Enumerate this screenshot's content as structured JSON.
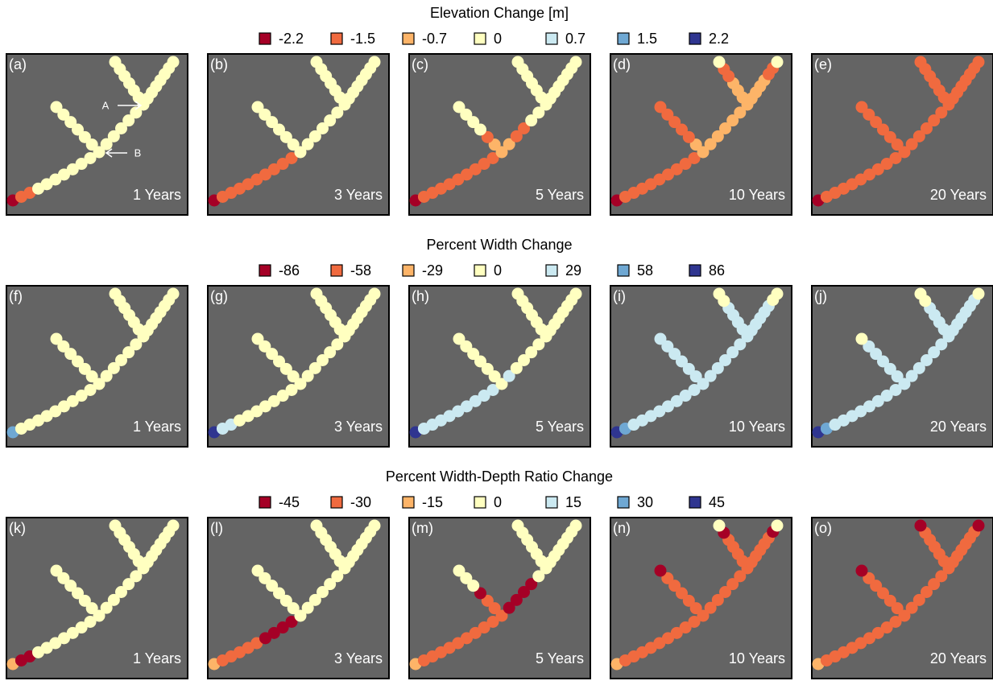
{
  "chart_data": [
    {
      "type": "dot-network",
      "title": "Elevation Change [m]",
      "legend": [
        {
          "value": -2.2,
          "color": "#a50026"
        },
        {
          "value": -1.5,
          "color": "#f06a3f"
        },
        {
          "value": -0.7,
          "color": "#fdb468"
        },
        {
          "value": 0,
          "color": "#ffffc0"
        },
        {
          "value": 0.7,
          "color": "#cbe9f1"
        },
        {
          "value": 1.5,
          "color": "#6fa8d3"
        },
        {
          "value": 2.2,
          "color": "#2f3590"
        }
      ],
      "annotations": [
        "A",
        "B"
      ],
      "panels": [
        {
          "label": "(a)",
          "time": "1 Years",
          "segments": [
            [
              -2.2,
              -1.5,
              -1.5,
              0,
              0,
              0,
              0,
              0,
              0,
              0,
              0
            ],
            [
              0,
              0,
              0,
              0,
              0,
              0
            ],
            [
              0,
              0,
              0,
              0,
              0,
              0
            ],
            [
              0,
              0,
              0,
              0,
              0,
              0
            ],
            [
              0,
              0,
              0,
              0,
              0,
              0,
              0
            ]
          ]
        },
        {
          "label": "(b)",
          "time": "3 Years",
          "segments": [
            [
              -2.2,
              -1.5,
              -1.5,
              -1.5,
              -1.5,
              -1.5,
              -1.5,
              -1.5,
              -1.5,
              -1.5,
              0
            ],
            [
              0,
              0,
              0,
              0,
              0,
              0
            ],
            [
              0,
              0,
              0,
              0,
              0,
              0
            ],
            [
              0,
              0,
              0,
              0,
              0,
              0
            ],
            [
              0,
              0,
              0,
              0,
              0,
              0,
              0
            ]
          ]
        },
        {
          "label": "(c)",
          "time": "5 Years",
          "segments": [
            [
              -2.2,
              -1.5,
              -1.5,
              -1.5,
              -1.5,
              -1.5,
              -1.5,
              -1.5,
              -1.5,
              -1.5,
              -0.7
            ],
            [
              -0.7,
              -1.5,
              0,
              0,
              0,
              0
            ],
            [
              -0.7,
              -1.5,
              -1.5,
              0,
              0,
              0
            ],
            [
              0,
              0,
              0,
              0,
              0,
              0
            ],
            [
              0,
              0,
              0,
              0,
              0,
              0,
              0
            ]
          ]
        },
        {
          "label": "(d)",
          "time": "10 Years",
          "segments": [
            [
              -2.2,
              -1.5,
              -1.5,
              -1.5,
              -1.5,
              -1.5,
              -1.5,
              -1.5,
              -1.5,
              -1.5,
              -0.7
            ],
            [
              -0.7,
              -1.5,
              -1.5,
              -1.5,
              -1.5,
              -1.5
            ],
            [
              -0.7,
              -0.7,
              -0.7,
              -0.7,
              -0.7,
              -0.7
            ],
            [
              -0.7,
              -0.7,
              -0.7,
              -1.5,
              -1.5,
              0
            ],
            [
              -0.7,
              -0.7,
              -0.7,
              -0.7,
              -1.5,
              -1.5,
              0
            ]
          ]
        },
        {
          "label": "(e)",
          "time": "20 Years",
          "segments": [
            [
              -2.2,
              -1.5,
              -1.5,
              -1.5,
              -1.5,
              -1.5,
              -1.5,
              -1.5,
              -1.5,
              -1.5,
              -1.5
            ],
            [
              -1.5,
              -1.5,
              -1.5,
              -1.5,
              -1.5,
              -1.5
            ],
            [
              -1.5,
              -1.5,
              -1.5,
              -1.5,
              -1.5,
              -1.5
            ],
            [
              -1.5,
              -1.5,
              -1.5,
              -1.5,
              -1.5,
              -1.5
            ],
            [
              -1.5,
              -1.5,
              -1.5,
              -1.5,
              -1.5,
              -1.5,
              -1.5
            ]
          ]
        }
      ]
    },
    {
      "type": "dot-network",
      "title": "Percent Width Change",
      "legend": [
        {
          "value": -86,
          "color": "#a50026"
        },
        {
          "value": -58,
          "color": "#f06a3f"
        },
        {
          "value": -29,
          "color": "#fdb468"
        },
        {
          "value": 0,
          "color": "#ffffc0"
        },
        {
          "value": 29,
          "color": "#cbe9f1"
        },
        {
          "value": 58,
          "color": "#6fa8d3"
        },
        {
          "value": 86,
          "color": "#2f3590"
        }
      ],
      "panels": [
        {
          "label": "(f)",
          "time": "1 Years",
          "segments": [
            [
              58,
              0,
              0,
              0,
              0,
              0,
              0,
              0,
              0,
              0,
              0
            ],
            [
              0,
              0,
              0,
              0,
              0,
              0
            ],
            [
              0,
              0,
              0,
              0,
              0,
              0
            ],
            [
              0,
              0,
              0,
              0,
              0,
              0
            ],
            [
              0,
              0,
              0,
              0,
              0,
              0,
              0
            ]
          ]
        },
        {
          "label": "(g)",
          "time": "3 Years",
          "segments": [
            [
              86,
              29,
              29,
              0,
              0,
              0,
              0,
              0,
              0,
              0,
              0
            ],
            [
              0,
              0,
              0,
              0,
              0,
              0
            ],
            [
              0,
              0,
              0,
              0,
              0,
              0
            ],
            [
              0,
              0,
              0,
              0,
              0,
              0
            ],
            [
              0,
              0,
              0,
              0,
              0,
              0,
              0
            ]
          ]
        },
        {
          "label": "(h)",
          "time": "5 Years",
          "segments": [
            [
              86,
              29,
              29,
              29,
              29,
              29,
              29,
              29,
              29,
              29,
              0
            ],
            [
              0,
              0,
              0,
              0,
              0,
              0
            ],
            [
              29,
              0,
              0,
              0,
              0,
              0
            ],
            [
              0,
              0,
              0,
              0,
              0,
              0
            ],
            [
              0,
              0,
              0,
              0,
              0,
              0,
              0
            ]
          ]
        },
        {
          "label": "(i)",
          "time": "10 Years",
          "segments": [
            [
              86,
              58,
              29,
              29,
              29,
              29,
              29,
              29,
              29,
              29,
              29
            ],
            [
              29,
              29,
              29,
              29,
              29,
              29
            ],
            [
              29,
              29,
              29,
              29,
              29,
              29
            ],
            [
              29,
              29,
              29,
              29,
              0,
              0
            ],
            [
              29,
              29,
              29,
              29,
              29,
              0,
              0
            ]
          ]
        },
        {
          "label": "(j)",
          "time": "20 Years",
          "segments": [
            [
              86,
              58,
              29,
              29,
              29,
              29,
              29,
              29,
              29,
              29,
              29
            ],
            [
              29,
              29,
              29,
              29,
              29,
              0
            ],
            [
              29,
              29,
              29,
              29,
              29,
              29
            ],
            [
              29,
              29,
              29,
              29,
              0,
              0
            ],
            [
              29,
              29,
              29,
              29,
              29,
              29,
              0
            ]
          ]
        }
      ]
    },
    {
      "type": "dot-network",
      "title": "Percent Width-Depth Ratio Change",
      "legend": [
        {
          "value": -45,
          "color": "#a50026"
        },
        {
          "value": -30,
          "color": "#f06a3f"
        },
        {
          "value": -15,
          "color": "#fdb468"
        },
        {
          "value": 0,
          "color": "#ffffc0"
        },
        {
          "value": 15,
          "color": "#cbe9f1"
        },
        {
          "value": 30,
          "color": "#6fa8d3"
        },
        {
          "value": 45,
          "color": "#2f3590"
        }
      ],
      "panels": [
        {
          "label": "(k)",
          "time": "1 Years",
          "segments": [
            [
              -15,
              -45,
              -45,
              0,
              0,
              0,
              0,
              0,
              0,
              0,
              0
            ],
            [
              0,
              0,
              0,
              0,
              0,
              0
            ],
            [
              0,
              0,
              0,
              0,
              0,
              0
            ],
            [
              0,
              0,
              0,
              0,
              0,
              0
            ],
            [
              0,
              0,
              0,
              0,
              0,
              0,
              0
            ]
          ]
        },
        {
          "label": "(l)",
          "time": "3 Years",
          "segments": [
            [
              -15,
              -30,
              -30,
              -30,
              -30,
              -30,
              -45,
              -45,
              -45,
              -45,
              0
            ],
            [
              0,
              0,
              0,
              0,
              0,
              0
            ],
            [
              0,
              0,
              0,
              0,
              0,
              0
            ],
            [
              0,
              0,
              0,
              0,
              0,
              0
            ],
            [
              0,
              0,
              0,
              0,
              0,
              0,
              0
            ]
          ]
        },
        {
          "label": "(m)",
          "time": "5 Years",
          "segments": [
            [
              -15,
              -30,
              -30,
              -30,
              -30,
              -30,
              -30,
              -30,
              -30,
              -30,
              -30
            ],
            [
              -30,
              -30,
              -45,
              0,
              0,
              0
            ],
            [
              -45,
              -45,
              -45,
              -45,
              0,
              0
            ],
            [
              0,
              0,
              0,
              0,
              0,
              0
            ],
            [
              0,
              0,
              0,
              0,
              0,
              0,
              0
            ]
          ]
        },
        {
          "label": "(n)",
          "time": "10 Years",
          "segments": [
            [
              -15,
              -30,
              -30,
              -30,
              -30,
              -30,
              -30,
              -30,
              -30,
              -30,
              -30
            ],
            [
              -30,
              -30,
              -30,
              -30,
              -30,
              -45
            ],
            [
              -30,
              -30,
              -30,
              -30,
              -30,
              -30
            ],
            [
              -30,
              -30,
              -30,
              -30,
              -45,
              0
            ],
            [
              -30,
              -30,
              -30,
              -30,
              -30,
              -45,
              0
            ]
          ]
        },
        {
          "label": "(o)",
          "time": "20 Years",
          "segments": [
            [
              -15,
              -30,
              -30,
              -30,
              -30,
              -30,
              -30,
              -30,
              -30,
              -30,
              -30
            ],
            [
              -30,
              -30,
              -30,
              -30,
              -30,
              -45
            ],
            [
              -30,
              -30,
              -30,
              -30,
              -30,
              -30
            ],
            [
              -30,
              -30,
              -30,
              -30,
              -30,
              -45
            ],
            [
              -30,
              -30,
              -30,
              -30,
              -30,
              -30,
              -45
            ]
          ]
        }
      ]
    }
  ]
}
